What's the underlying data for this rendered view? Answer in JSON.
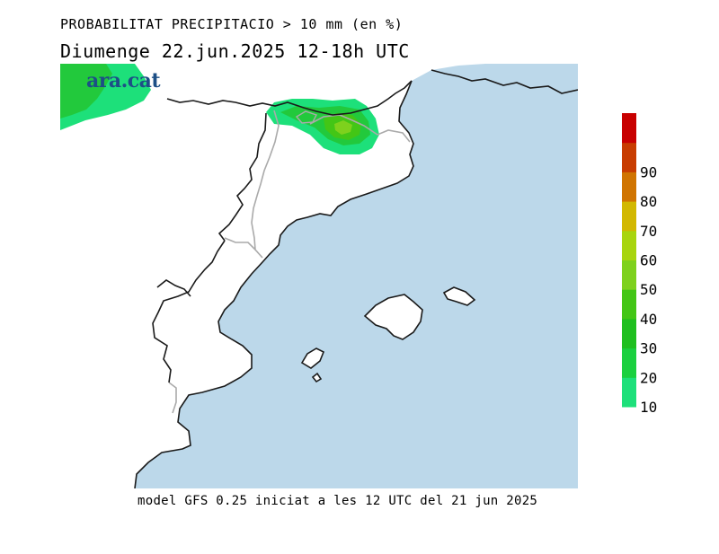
{
  "header": {
    "title": "PROBABILITAT PRECIPITACIO > 10 mm (en %)",
    "subtitle": "Diumenge  22.jun.2025 12-18h UTC"
  },
  "brand": {
    "logo_text": "ara.cat"
  },
  "footer": {
    "model_info": "model GFS 0.25 iniciat a les 12 UTC del 21 jun 2025"
  },
  "colors": {
    "sea": "#bcd8ea",
    "land": "#ffffff",
    "coast": "#1a1a1a",
    "border": "#aaaaaa",
    "precip_10": "#1de07a",
    "precip_20": "#22c93c",
    "precip_30": "#3bd613",
    "precip_40": "#46c716",
    "precip_50": "#7dd51b"
  },
  "legend": {
    "levels": [
      10,
      20,
      30,
      40,
      50,
      60,
      70,
      80,
      90
    ],
    "labels": [
      "10",
      "20",
      "30",
      "40",
      "50",
      "60",
      "70",
      "80",
      "90"
    ],
    "colors": [
      "#1de07a",
      "#1ad03f",
      "#1fbf1f",
      "#43c616",
      "#7ed11d",
      "#a8d50e",
      "#d2b800",
      "#d07400",
      "#c83c00",
      "#c80000"
    ]
  }
}
